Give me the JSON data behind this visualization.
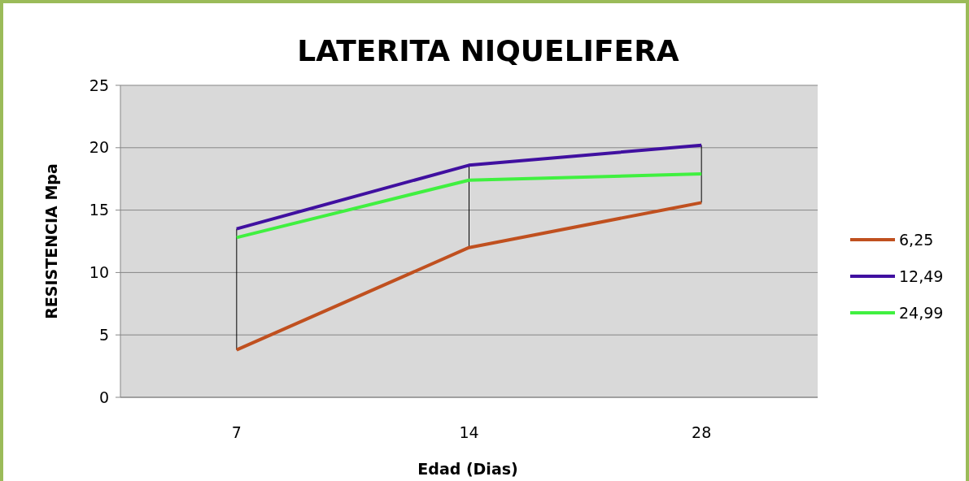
{
  "chart_data": {
    "type": "line",
    "title": "LATERITA NIQUELIFERA",
    "xlabel": "Edad (Dias)",
    "ylabel": "RESISTENCIA Mpa",
    "categories": [
      "7",
      "14",
      "28"
    ],
    "series": [
      {
        "name": "6,25",
        "color": "#c0501f",
        "values": [
          3.8,
          12,
          15.6
        ]
      },
      {
        "name": "12,49",
        "color": "#4010a0",
        "values": [
          13.5,
          18.6,
          20.2
        ]
      },
      {
        "name": "24,99",
        "color": "#40f040",
        "values": [
          12.8,
          17.4,
          17.9
        ]
      }
    ],
    "ylim": [
      0,
      25
    ],
    "yticks": [
      0,
      5,
      10,
      15,
      20,
      25
    ],
    "grid": "y",
    "legend": "right",
    "marker": "none"
  }
}
